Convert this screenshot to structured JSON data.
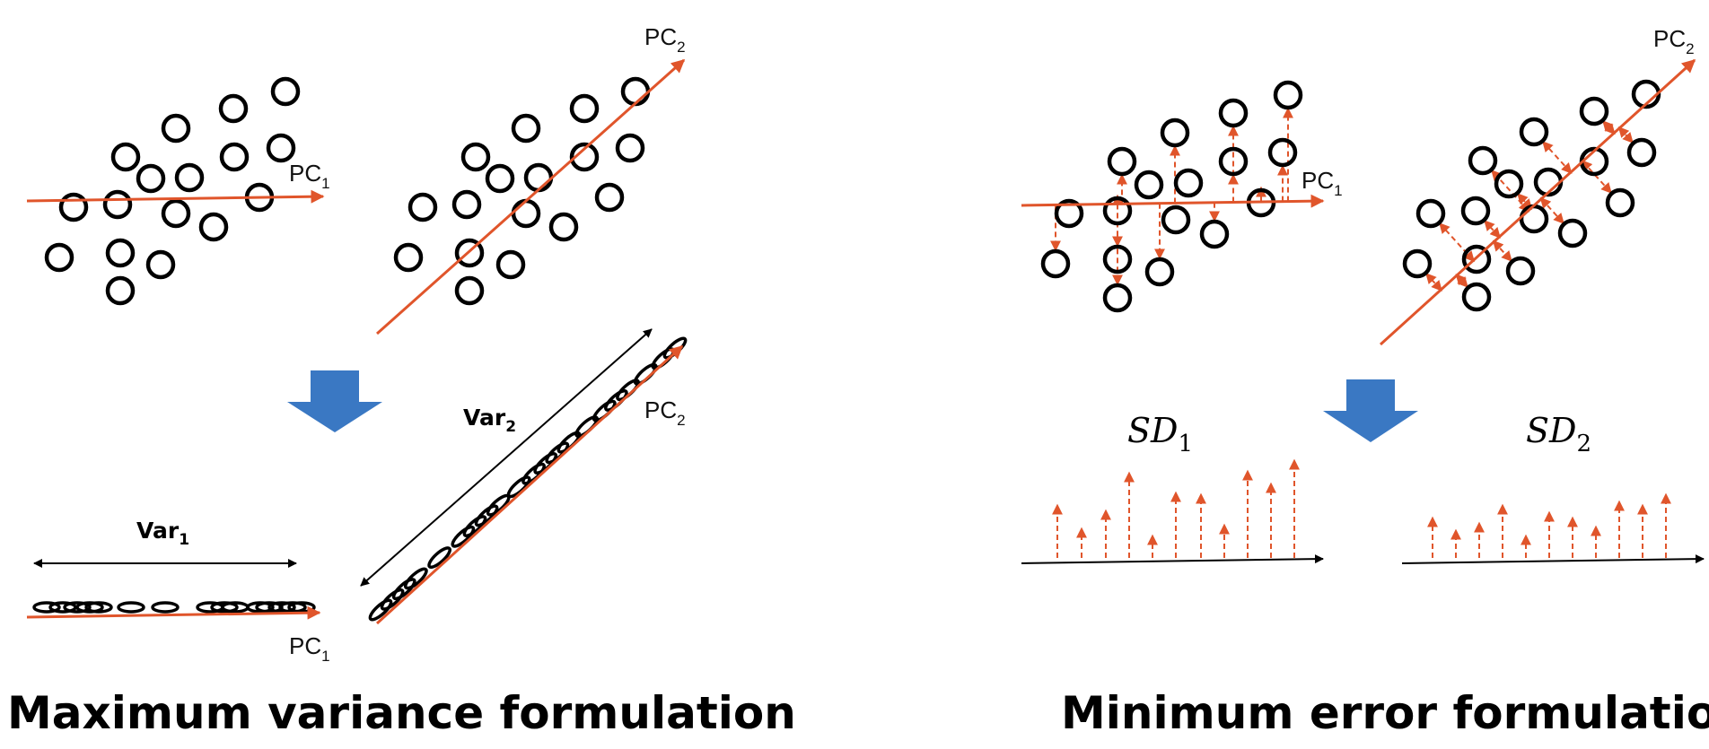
{
  "panels": {
    "max_variance": {
      "title": "Maximum variance formulation",
      "pc1": "PC",
      "pc1_sub": "1",
      "pc2": "PC",
      "pc2_sub": "2",
      "var1": "Var",
      "var1_sub": "1",
      "var2": "Var",
      "var2_sub": "2"
    },
    "min_error": {
      "title": "Minimum error formulation",
      "pc1": "PC",
      "pc1_sub": "1",
      "pc2": "PC",
      "pc2_sub": "2",
      "sd1": "SD",
      "sd1_sub": "1",
      "sd2": "SD",
      "sd2_sub": "2"
    }
  },
  "colors": {
    "axis": "#e0552b",
    "point_stroke": "#000000",
    "down_arrow": "#3a78c3",
    "text": "#111111"
  }
}
